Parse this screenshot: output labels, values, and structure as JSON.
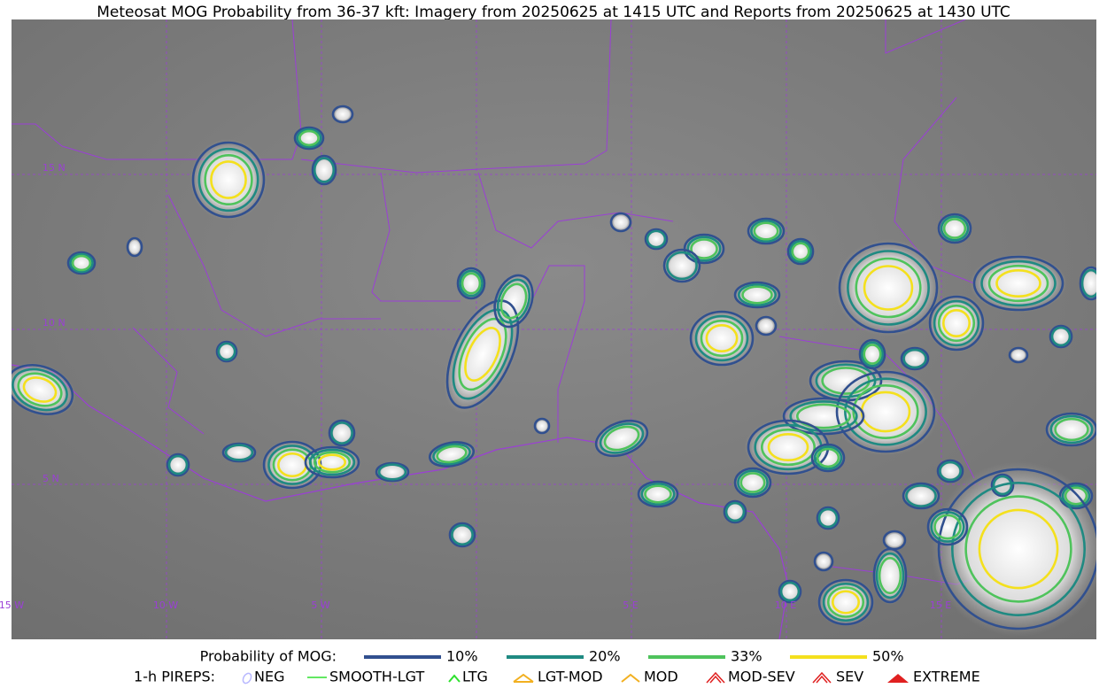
{
  "title": "Meteosat MOG Probability from 36-37 kft: Imagery from 20250625 at 1415 UTC and Reports from 20250625 at 1430 UTC",
  "map": {
    "lat_labels": [
      "15 N",
      "10 N",
      "5 N"
    ],
    "lon_labels": [
      "15 W",
      "10 W",
      "5 W",
      "5 E",
      "10 E",
      "15 E"
    ]
  },
  "legend": {
    "probability": {
      "title": "Probability of MOG:",
      "items": [
        "10%",
        "20%",
        "33%",
        "50%"
      ]
    },
    "pireps": {
      "title": "1-h PIREPS:",
      "items": [
        "NEG",
        "SMOOTH-LGT",
        "LTG",
        "LGT-MOD",
        "MOD",
        "MOD-SEV",
        "SEV",
        "EXTREME"
      ]
    }
  }
}
